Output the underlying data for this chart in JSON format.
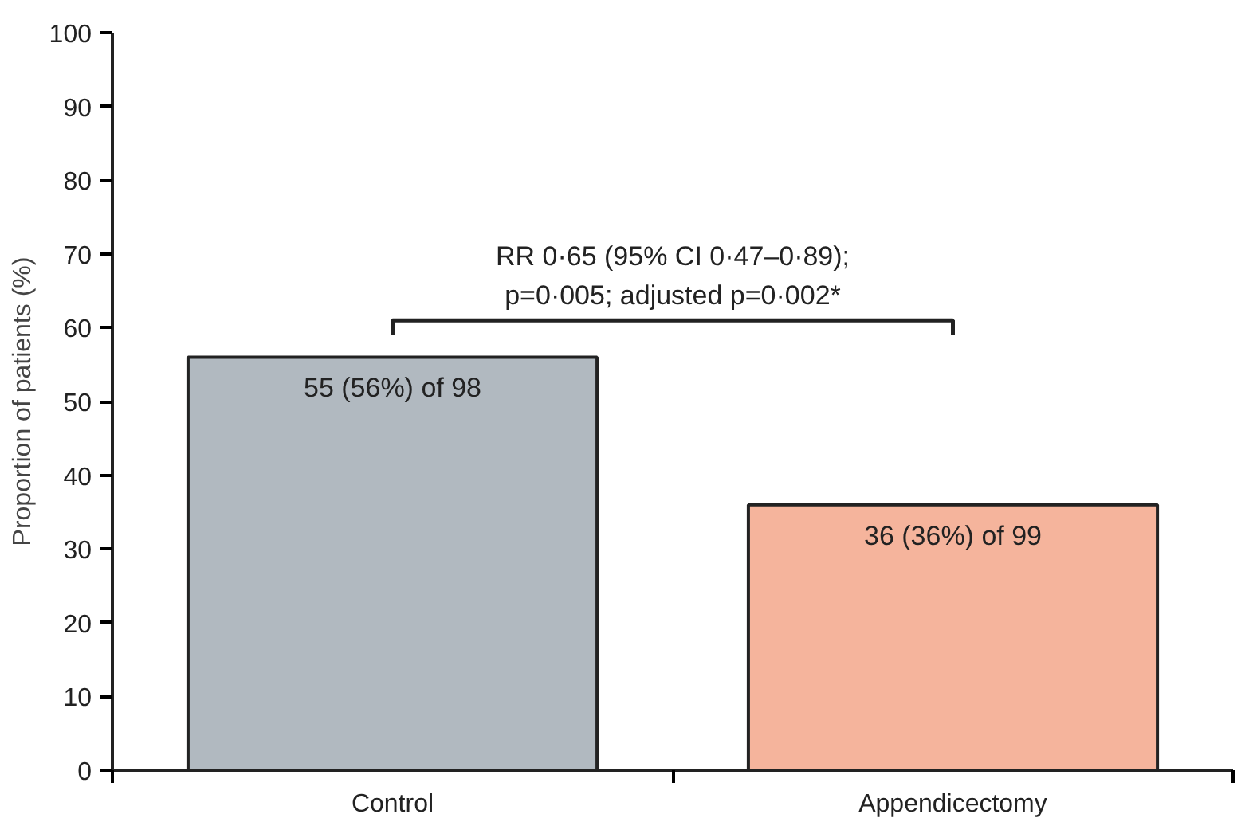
{
  "chart_data": {
    "type": "bar",
    "ylabel": "Proportion of patients (%)",
    "categories": [
      "Control",
      "Appendicectomy"
    ],
    "values": [
      56,
      36
    ],
    "colors": [
      "#b1b9c0",
      "#f5b49c"
    ],
    "value_labels": [
      "55 (56%) of 98",
      "36 (36%) of 99"
    ],
    "annotations": [
      "RR 0·65 (95% CI 0·47–0·89);\np=0·005; adjusted p=0·002*"
    ],
    "ylim": [
      0,
      100
    ],
    "yticks": [
      0,
      10,
      20,
      30,
      40,
      50,
      60,
      70,
      80,
      90,
      100
    ],
    "grid": false
  }
}
